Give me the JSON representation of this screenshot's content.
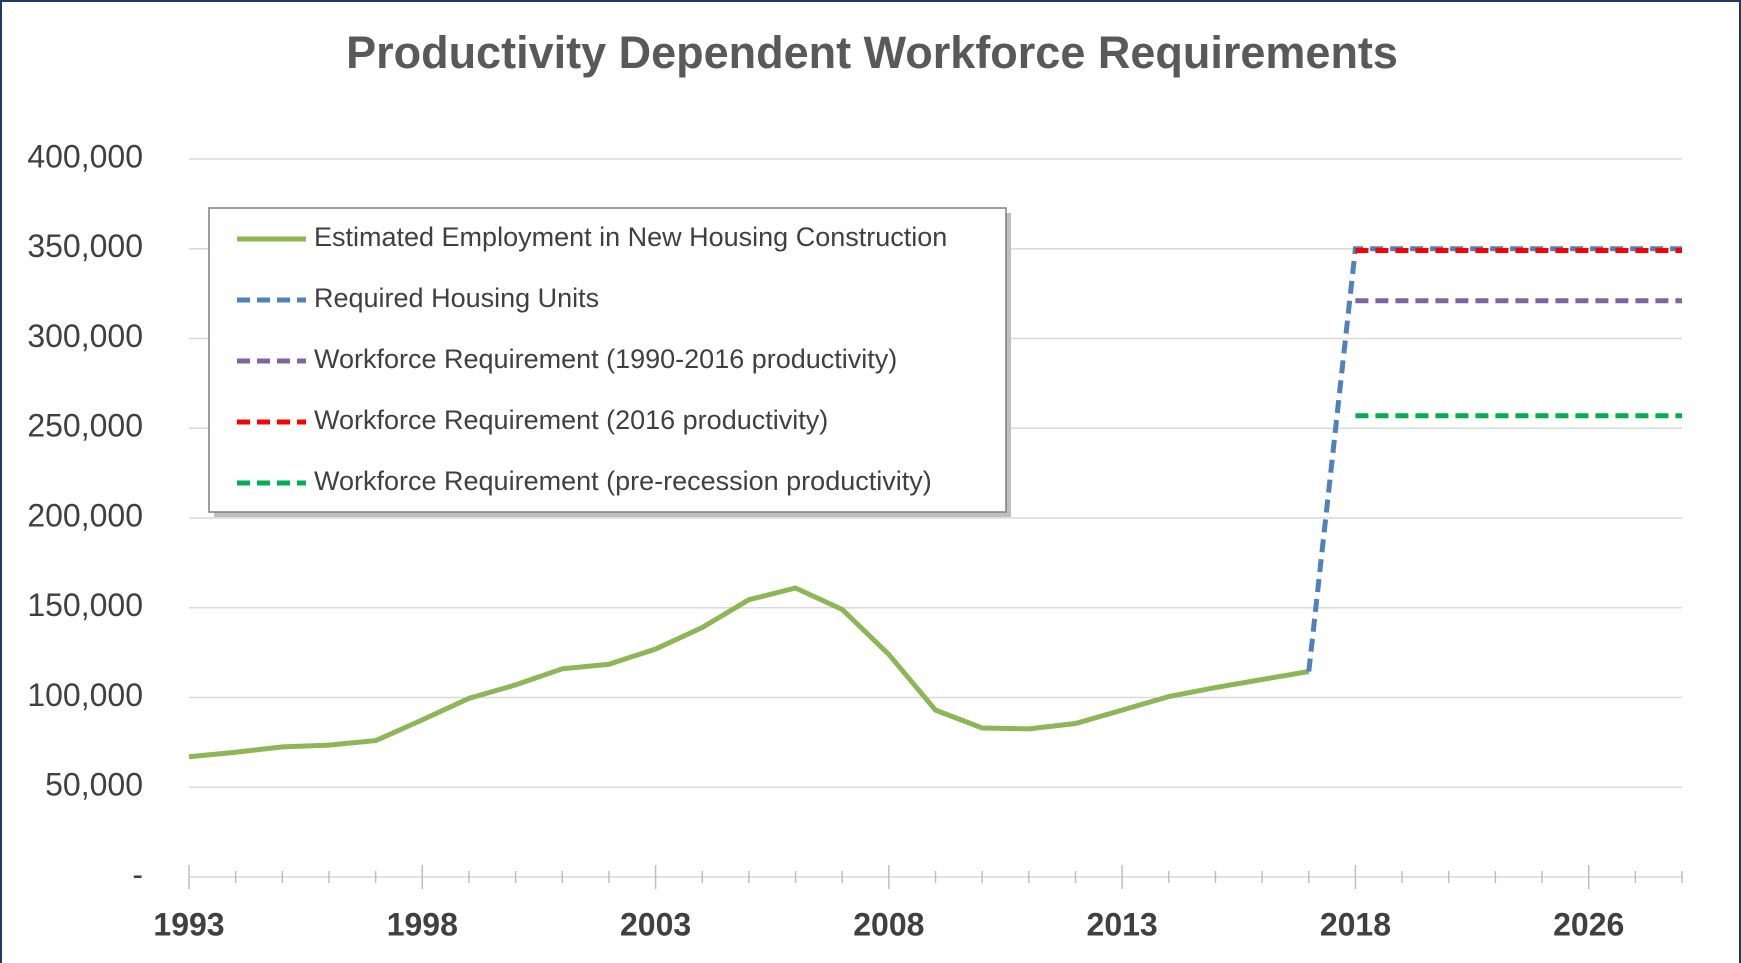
{
  "chart_data": {
    "type": "line",
    "title": "Productivity Dependent Workforce Requirements",
    "categories": [
      "1993",
      null,
      null,
      null,
      null,
      "1998",
      null,
      null,
      null,
      null,
      "2003",
      null,
      null,
      null,
      null,
      "2008",
      null,
      null,
      null,
      null,
      "2013",
      null,
      null,
      null,
      null,
      "2018",
      null,
      null,
      null,
      null,
      "2026",
      null,
      null
    ],
    "series": [
      {
        "name": "Estimated Employment in New Housing Construction",
        "color": "#8db657",
        "dash": false,
        "values": [
          67000,
          69500,
          72500,
          73500,
          76000,
          87500,
          99500,
          107000,
          116000,
          118500,
          127000,
          139000,
          154500,
          161000,
          149000,
          124000,
          93000,
          83000,
          82500,
          85500,
          93000,
          100500,
          105500,
          110000,
          114500,
          null,
          null,
          null,
          null,
          null,
          null,
          null,
          null
        ]
      },
      {
        "name": "Required Housing Units",
        "color": "#4f81bd",
        "dash": true,
        "values": [
          null,
          null,
          null,
          null,
          null,
          null,
          null,
          null,
          null,
          null,
          null,
          null,
          null,
          null,
          null,
          null,
          null,
          null,
          null,
          null,
          null,
          null,
          null,
          null,
          114500,
          350000,
          350000,
          350000,
          350000,
          350000,
          350000,
          350000,
          350000
        ]
      },
      {
        "name": "Workforce Requirement (1990-2016 productivity)",
        "color": "#8064a2",
        "dash": true,
        "values": [
          null,
          null,
          null,
          null,
          null,
          null,
          null,
          null,
          null,
          null,
          null,
          null,
          null,
          null,
          null,
          null,
          null,
          null,
          null,
          null,
          null,
          null,
          null,
          null,
          null,
          321000,
          321000,
          321000,
          321000,
          321000,
          321000,
          321000,
          321000
        ]
      },
      {
        "name": "Workforce Requirement (2016 productivity)",
        "color": "#ff0000",
        "dash": true,
        "values": [
          null,
          null,
          null,
          null,
          null,
          null,
          null,
          null,
          null,
          null,
          null,
          null,
          null,
          null,
          null,
          null,
          null,
          null,
          null,
          null,
          null,
          null,
          null,
          null,
          null,
          349000,
          349000,
          349000,
          349000,
          349000,
          349000,
          349000,
          349000
        ]
      },
      {
        "name": "Workforce Requirement (pre-recession productivity)",
        "color": "#00b050",
        "dash": true,
        "values": [
          null,
          null,
          null,
          null,
          null,
          null,
          null,
          null,
          null,
          null,
          null,
          null,
          null,
          null,
          null,
          null,
          null,
          null,
          null,
          null,
          null,
          null,
          null,
          null,
          null,
          257000,
          257000,
          257000,
          257000,
          257000,
          257000,
          257000,
          257000
        ]
      }
    ],
    "ylim": [
      0,
      400000
    ],
    "yticks": [
      {
        "value": 0,
        "label": "-"
      },
      {
        "value": 50000,
        "label": "50,000"
      },
      {
        "value": 100000,
        "label": "100,000"
      },
      {
        "value": 150000,
        "label": "150,000"
      },
      {
        "value": 200000,
        "label": "200,000"
      },
      {
        "value": 250000,
        "label": "250,000"
      },
      {
        "value": 300000,
        "label": "300,000"
      },
      {
        "value": 350000,
        "label": "350,000"
      },
      {
        "value": 400000,
        "label": "400,000"
      }
    ],
    "grid": true,
    "legend": "upper left"
  }
}
